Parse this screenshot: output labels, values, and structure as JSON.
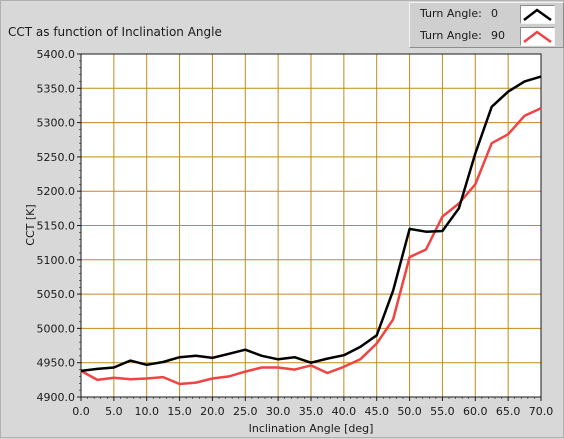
{
  "chart_data": {
    "type": "line",
    "title": "CCT as function of Inclination Angle",
    "xlabel": "Inclination Angle [deg]",
    "ylabel": "CCT [K]",
    "xlim": [
      0,
      70
    ],
    "ylim": [
      4900,
      5400
    ],
    "x_ticks": [
      "0.0",
      "5.0",
      "10.0",
      "15.0",
      "20.0",
      "25.0",
      "30.0",
      "35.0",
      "40.0",
      "45.0",
      "50.0",
      "55.0",
      "60.0",
      "65.0",
      "70.0"
    ],
    "y_ticks": [
      "4900.0",
      "4950.0",
      "5000.0",
      "5050.0",
      "5100.0",
      "5150.0",
      "5200.0",
      "5250.0",
      "5300.0",
      "5350.0",
      "5400.0"
    ],
    "x_tick_values": [
      0,
      5,
      10,
      15,
      20,
      25,
      30,
      35,
      40,
      45,
      50,
      55,
      60,
      65,
      70
    ],
    "y_tick_values": [
      4900,
      4950,
      5000,
      5050,
      5100,
      5150,
      5200,
      5250,
      5300,
      5350,
      5400
    ],
    "grid": true,
    "legend_position": "top-right",
    "x": [
      0,
      2.5,
      5,
      7.5,
      10,
      12.5,
      15,
      17.5,
      20,
      22.5,
      25,
      27.5,
      30,
      32.5,
      35,
      37.5,
      40,
      42.5,
      45,
      47.5,
      50,
      52.5,
      55,
      57.5,
      60,
      62.5,
      65,
      67.5,
      70
    ],
    "series": [
      {
        "name": "0",
        "color": "#000000",
        "values": [
          4938,
          4941,
          4943,
          4953,
          4947,
          4951,
          4958,
          4960,
          4957,
          4963,
          4969,
          4960,
          4955,
          4958,
          4950,
          4956,
          4961,
          4973,
          4990,
          5055,
          5145,
          5141,
          5142,
          5175,
          5255,
          5323,
          5345,
          5360,
          5367
        ]
      },
      {
        "name": "90",
        "color": "#ee4444",
        "values": [
          4938,
          4925,
          4928,
          4926,
          4927,
          4929,
          4919,
          4921,
          4927,
          4930,
          4937,
          4943,
          4943,
          4940,
          4946,
          4935,
          4944,
          4955,
          4978,
          5013,
          5104,
          5115,
          5163,
          5182,
          5210,
          5270,
          5283,
          5310,
          5321
        ]
      }
    ]
  },
  "legend": {
    "label": "Turn Angle:",
    "items": [
      {
        "value": "0",
        "color": "#000000"
      },
      {
        "value": "90",
        "color": "#ee4444"
      }
    ]
  },
  "colors": {
    "plot_background": "#ffffff",
    "grid": "#c08a1e",
    "frame": "#d8d8d8"
  }
}
